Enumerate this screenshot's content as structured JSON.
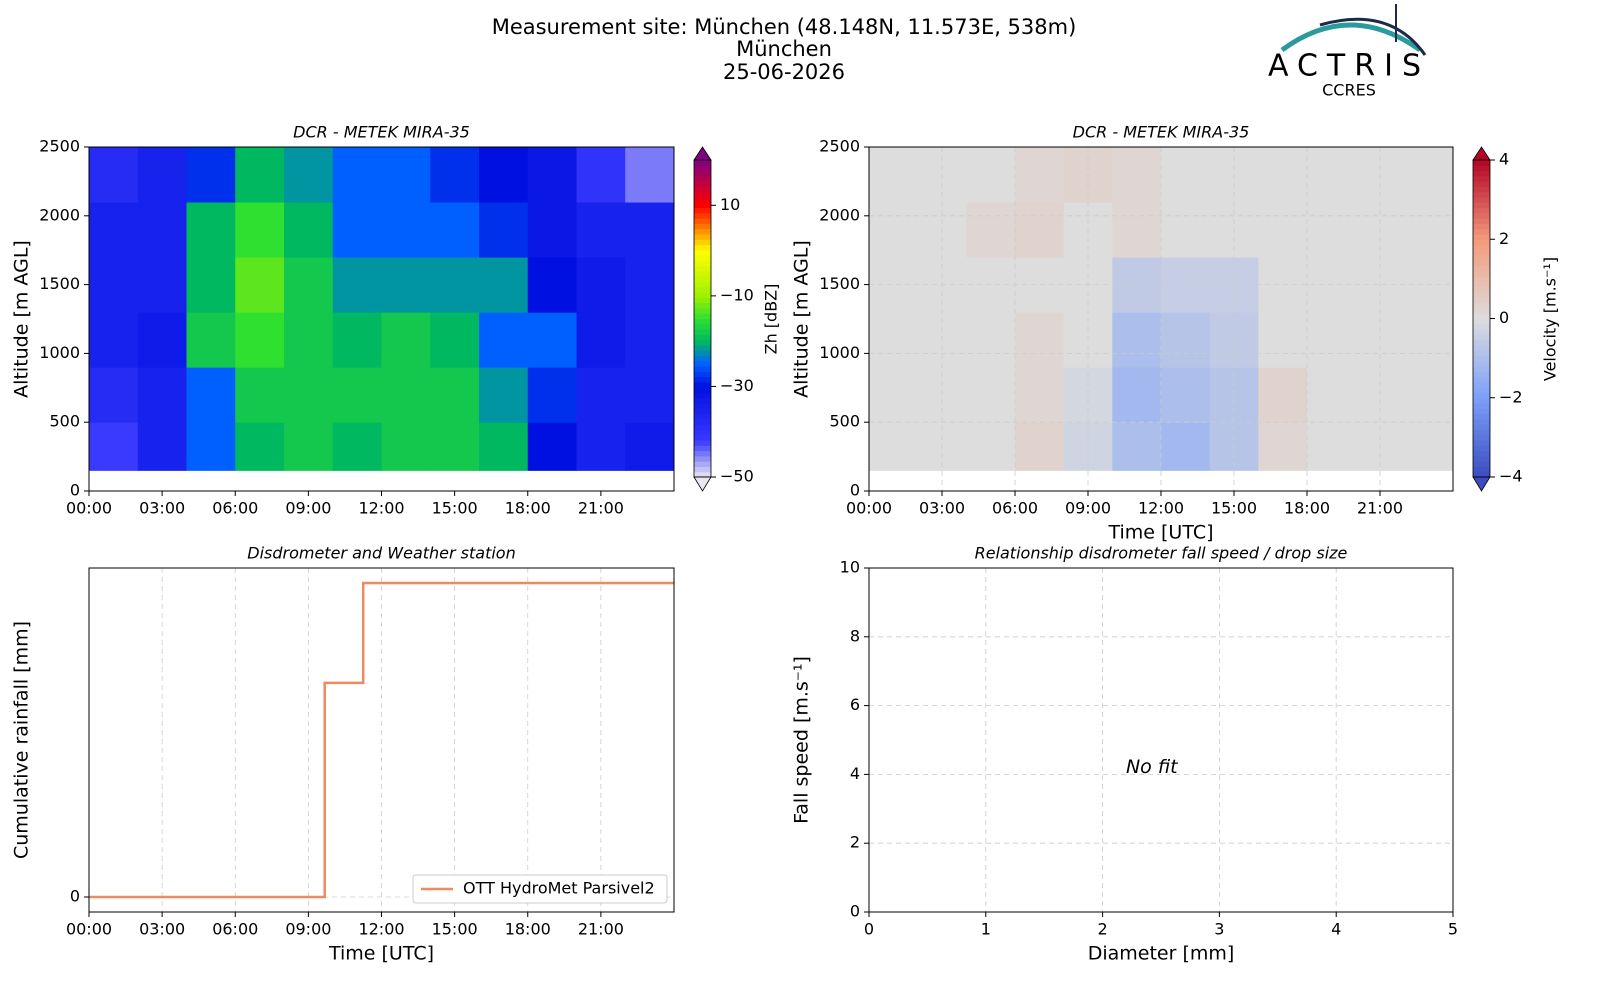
{
  "header": {
    "title_lines": [
      "Measurement site: München (48.148N, 11.573E, 538m)",
      "München",
      "25-06-2026"
    ],
    "logo": {
      "text": "ACTRIS",
      "subtext": "CCRES"
    }
  },
  "chart_data": [
    {
      "type": "heatmap",
      "title": "DCR - METEK MIRA-35",
      "ylabel": "Altitude [m AGL]",
      "xlim": [
        0,
        24
      ],
      "ylim": [
        0,
        2500
      ],
      "xticks": [
        {
          "value": 0,
          "label": "00:00"
        },
        {
          "value": 3,
          "label": "03:00"
        },
        {
          "value": 6,
          "label": "06:00"
        },
        {
          "value": 9,
          "label": "09:00"
        },
        {
          "value": 12,
          "label": "12:00"
        },
        {
          "value": 15,
          "label": "15:00"
        },
        {
          "value": 18,
          "label": "18:00"
        },
        {
          "value": 21,
          "label": "21:00"
        }
      ],
      "yticks": [
        0,
        500,
        1000,
        1500,
        2000,
        2500
      ],
      "grid": false,
      "x_edges": [
        0,
        2,
        4,
        6,
        8,
        10,
        12,
        14,
        16,
        18,
        20,
        22,
        24
      ],
      "y_edges": [
        150,
        500,
        900,
        1300,
        1700,
        2100,
        2500
      ],
      "z": [
        [
          -42,
          -35,
          -25,
          -20,
          -18,
          -20,
          -18,
          -18,
          -20,
          -30,
          -35,
          -33
        ],
        [
          -38,
          -35,
          -25,
          -18,
          -18,
          -18,
          -18,
          -18,
          -22,
          -28,
          -35,
          -35
        ],
        [
          -35,
          -33,
          -18,
          -15,
          -18,
          -20,
          -18,
          -20,
          -25,
          -25,
          -33,
          -35
        ],
        [
          -35,
          -35,
          -20,
          -13,
          -18,
          -22,
          -22,
          -22,
          -22,
          -30,
          -33,
          -35
        ],
        [
          -35,
          -35,
          -20,
          -15,
          -20,
          -25,
          -25,
          -25,
          -28,
          -32,
          -35,
          -35
        ],
        [
          -38,
          -35,
          -28,
          -20,
          -22,
          -25,
          -25,
          -28,
          -30,
          -32,
          -40,
          -45
        ]
      ],
      "colorbar": {
        "label": "Zh [dBZ]",
        "clim": [
          -50,
          20
        ],
        "ticks": [
          {
            "value": -50,
            "label": "−50"
          },
          {
            "value": -30,
            "label": "−30"
          },
          {
            "value": -10,
            "label": "−10"
          },
          10
        ],
        "stops": [
          [
            -50,
            "#e8e8f0"
          ],
          [
            -42,
            "#3a3aff"
          ],
          [
            -30,
            "#0010e0"
          ],
          [
            -25,
            "#0060ff"
          ],
          [
            -20,
            "#00b860"
          ],
          [
            -15,
            "#30e030"
          ],
          [
            -10,
            "#a0f000"
          ],
          [
            0,
            "#ffff00"
          ],
          [
            5,
            "#ff8000"
          ],
          [
            10,
            "#ff0000"
          ],
          [
            20,
            "#800080"
          ]
        ]
      }
    },
    {
      "type": "heatmap",
      "title": "DCR - METEK MIRA-35",
      "ylabel": "Altitude [m AGL]",
      "xlabel": "Time [UTC]",
      "xlim": [
        0,
        24
      ],
      "ylim": [
        0,
        2500
      ],
      "xticks": [
        {
          "value": 0,
          "label": "00:00"
        },
        {
          "value": 3,
          "label": "03:00"
        },
        {
          "value": 6,
          "label": "06:00"
        },
        {
          "value": 9,
          "label": "09:00"
        },
        {
          "value": 12,
          "label": "12:00"
        },
        {
          "value": 15,
          "label": "15:00"
        },
        {
          "value": 18,
          "label": "18:00"
        },
        {
          "value": 21,
          "label": "21:00"
        }
      ],
      "yticks": [
        0,
        500,
        1000,
        1500,
        2000,
        2500
      ],
      "grid": true,
      "x_edges": [
        0,
        2,
        4,
        6,
        8,
        10,
        12,
        14,
        16,
        18,
        20,
        22,
        24
      ],
      "y_edges": [
        150,
        500,
        900,
        1300,
        1700,
        2100,
        2500
      ],
      "z": [
        [
          0,
          0,
          0,
          0.3,
          -0.3,
          -1,
          -1.2,
          -0.8,
          0.2,
          0,
          0,
          0
        ],
        [
          0,
          0,
          0,
          0.2,
          -0.2,
          -1.2,
          -1,
          -0.8,
          0.3,
          0,
          0,
          0
        ],
        [
          0,
          0,
          0,
          0.2,
          0,
          -1,
          -0.8,
          -0.6,
          0,
          0,
          0,
          0
        ],
        [
          0,
          0,
          0,
          0,
          0,
          -0.6,
          -0.5,
          -0.5,
          0,
          0,
          0,
          0
        ],
        [
          0,
          0,
          0.2,
          0.3,
          0,
          0.2,
          0,
          0,
          0,
          0,
          0,
          0
        ],
        [
          0,
          0,
          0,
          0.2,
          0.3,
          0.2,
          0,
          0,
          0,
          0,
          0,
          0
        ]
      ],
      "colorbar": {
        "label": "Velocity [m.s⁻¹]",
        "clim": [
          -4,
          4
        ],
        "ticks": [
          {
            "value": -4,
            "label": "−4"
          },
          {
            "value": -2,
            "label": "−2"
          },
          0,
          2,
          4
        ],
        "stops": [
          [
            -4,
            "#3b4cc0"
          ],
          [
            -2,
            "#7b9ff9"
          ],
          [
            0,
            "#dddddd"
          ],
          [
            2,
            "#f49a7b"
          ],
          [
            4,
            "#b40426"
          ]
        ]
      }
    },
    {
      "type": "line",
      "title": "Disdrometer and Weather station",
      "ylabel": "Cumulative rainfall [mm]",
      "xlabel": "Time [UTC]",
      "xlim": [
        0,
        24
      ],
      "ylim": [
        -0.105,
        2.305
      ],
      "xticks": [
        {
          "value": 0,
          "label": "00:00"
        },
        {
          "value": 3,
          "label": "03:00"
        },
        {
          "value": 6,
          "label": "06:00"
        },
        {
          "value": 9,
          "label": "09:00"
        },
        {
          "value": 12,
          "label": "12:00"
        },
        {
          "value": 15,
          "label": "15:00"
        },
        {
          "value": 18,
          "label": "18:00"
        },
        {
          "value": 21,
          "label": "21:00"
        }
      ],
      "yticks": [
        0
      ],
      "grid": true,
      "drawstyle": "steps-post",
      "legend": "lower right",
      "x": [
        0,
        9.67,
        11.25,
        24
      ],
      "series": [
        {
          "name": "OTT HydroMet Parsivel2",
          "color": "#ee8a62",
          "values": [
            0,
            1.5,
            2.2,
            2.2
          ]
        }
      ]
    },
    {
      "type": "scatter",
      "title": "Relationship disdrometer fall speed / drop size",
      "ylabel": "Fall speed [m.s⁻¹]",
      "xlabel": "Diameter [mm]",
      "xlim": [
        0,
        5
      ],
      "ylim": [
        0,
        10
      ],
      "xticks": [
        0,
        1,
        2,
        3,
        4,
        5
      ],
      "yticks": [
        0,
        2,
        4,
        6,
        8,
        10
      ],
      "grid": true,
      "annotation": "No fit",
      "series": []
    }
  ]
}
